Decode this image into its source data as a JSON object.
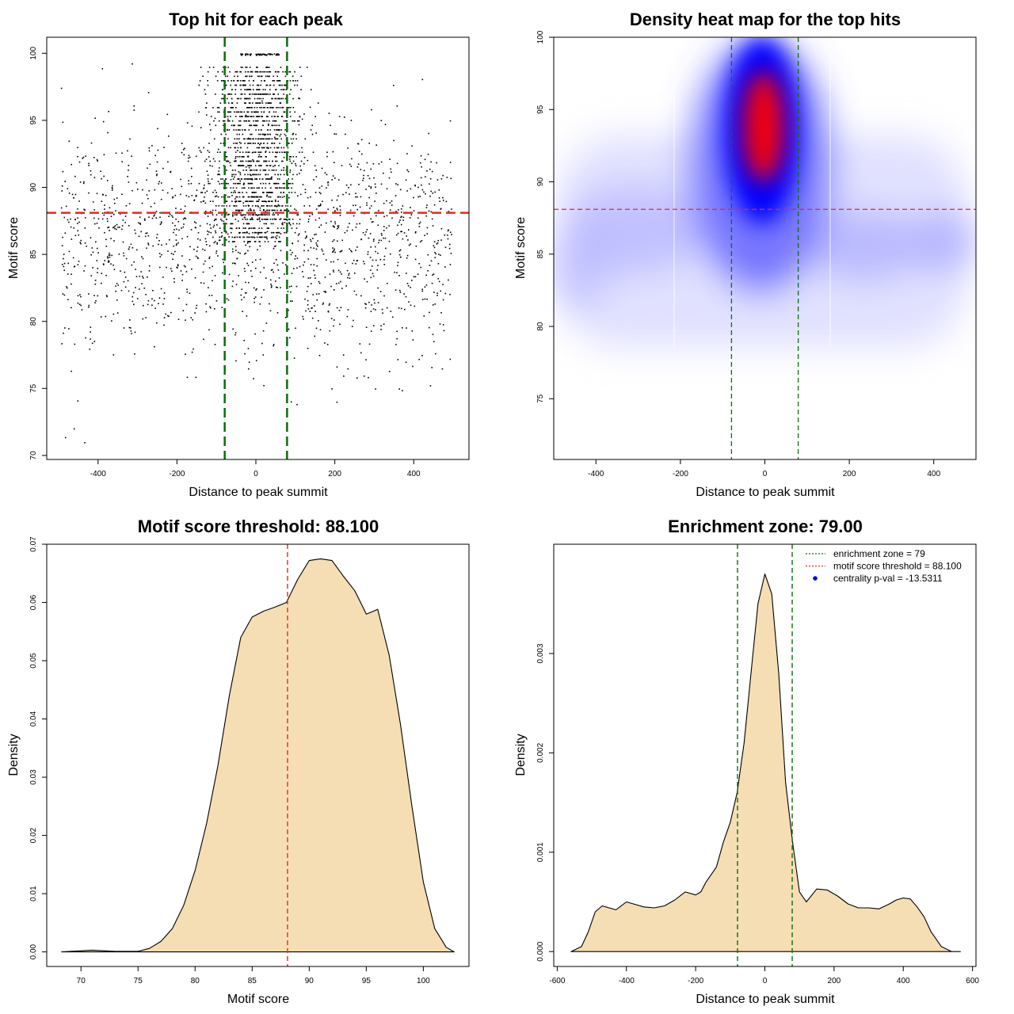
{
  "chart_data": [
    {
      "type": "scatter",
      "title": "Top hit for each peak",
      "xlabel": "Distance to peak summit",
      "ylabel": "Motif score",
      "xlim": [
        -530,
        540
      ],
      "ylim": [
        69.7,
        101.2
      ],
      "xticks": [
        -400,
        -200,
        0,
        200,
        400
      ],
      "yticks": [
        70,
        75,
        80,
        85,
        90,
        95,
        100
      ],
      "point_color": "#000000",
      "note_points": "points are dense between x in [-79, 79] and y >= 86; sampled visually",
      "hlines": [
        {
          "y": 88.1,
          "color": "#e8281e",
          "style": "dashed"
        }
      ],
      "vlines": [
        {
          "x": -79,
          "color": "#0a6e0a",
          "style": "dashed"
        },
        {
          "x": 79,
          "color": "#0a6e0a",
          "style": "dashed"
        }
      ]
    },
    {
      "type": "heatmap",
      "title": "Density heat map for the top hits",
      "xlabel": "Distance to peak summit",
      "ylabel": "Motif score",
      "xlim": [
        -500,
        500
      ],
      "ylim": [
        70.8,
        100
      ],
      "xticks": [
        -400,
        -200,
        0,
        200,
        400
      ],
      "yticks": [
        75,
        80,
        85,
        90,
        95,
        100
      ],
      "colors": [
        "#ffffff",
        "#0000ff",
        "#ff0000"
      ],
      "hlines": [
        {
          "y": 88.1,
          "color": "#e8281e",
          "style": "dashed"
        }
      ],
      "vlines": [
        {
          "x": -79,
          "color": "#0a6e0a",
          "style": "dashed"
        },
        {
          "x": 79,
          "color": "#0a6e0a",
          "style": "dashed"
        }
      ]
    },
    {
      "type": "area",
      "title": "Motif score threshold: 88.100",
      "xlabel": "Motif score",
      "ylabel": "Density",
      "xlim": [
        67,
        104
      ],
      "ylim": [
        -0.0025,
        0.07
      ],
      "xticks": [
        70,
        75,
        80,
        85,
        90,
        95,
        100
      ],
      "yticks": [
        0.0,
        0.01,
        0.02,
        0.03,
        0.04,
        0.05,
        0.06,
        0.07
      ],
      "ytick_labels": [
        "0.00",
        "0.01",
        "0.02",
        "0.03",
        "0.04",
        "0.05",
        "0.06",
        "0.07"
      ],
      "fill_color": "#f5deb3",
      "x": [
        68.3,
        70,
        71,
        72,
        73,
        75,
        76,
        77,
        78,
        79,
        80,
        81,
        82,
        83,
        84,
        85,
        86,
        87,
        88,
        89,
        90,
        91,
        92,
        93,
        94,
        95,
        96,
        97,
        98,
        99,
        100,
        101,
        102,
        102.7
      ],
      "y": [
        0.0,
        0.0002,
        0.0003,
        0.0002,
        0.0001,
        0.0001,
        0.0006,
        0.0018,
        0.004,
        0.008,
        0.014,
        0.022,
        0.032,
        0.044,
        0.054,
        0.0575,
        0.0585,
        0.0592,
        0.06,
        0.064,
        0.0672,
        0.0675,
        0.0672,
        0.0645,
        0.062,
        0.058,
        0.0588,
        0.051,
        0.039,
        0.025,
        0.012,
        0.004,
        0.0008,
        0.0
      ],
      "vlines": [
        {
          "x": 88.1,
          "color": "#e8281e",
          "style": "dashed"
        }
      ]
    },
    {
      "type": "area",
      "title": "Enrichment zone: 79.00",
      "xlabel": "Distance to peak summit",
      "ylabel": "Density",
      "xlim": [
        -610,
        610
      ],
      "ylim": [
        -0.00015,
        0.0041
      ],
      "xticks": [
        -600,
        -400,
        -200,
        0,
        200,
        400,
        600
      ],
      "yticks": [
        0.0,
        0.001,
        0.002,
        0.003
      ],
      "ytick_labels": [
        "0.000",
        "0.001",
        "0.002",
        "0.003"
      ],
      "fill_color": "#f5deb3",
      "x": [
        -560,
        -530,
        -510,
        -490,
        -470,
        -450,
        -430,
        -400,
        -380,
        -350,
        -320,
        -290,
        -260,
        -230,
        -200,
        -185,
        -170,
        -140,
        -120,
        -100,
        -80,
        -60,
        -40,
        -20,
        0,
        20,
        40,
        60,
        80,
        100,
        120,
        150,
        180,
        210,
        240,
        270,
        300,
        330,
        360,
        380,
        400,
        420,
        440,
        460,
        480,
        510,
        540,
        565
      ],
      "y": [
        0.0,
        5e-05,
        0.0002,
        0.0004,
        0.00046,
        0.00044,
        0.00042,
        0.0005,
        0.00048,
        0.00045,
        0.00044,
        0.00046,
        0.00052,
        0.0006,
        0.00057,
        0.0006,
        0.0007,
        0.00085,
        0.0011,
        0.0013,
        0.0016,
        0.0021,
        0.0028,
        0.0035,
        0.0038,
        0.0036,
        0.0028,
        0.0017,
        0.0011,
        0.0006,
        0.0005,
        0.00063,
        0.00062,
        0.00056,
        0.00048,
        0.00044,
        0.00044,
        0.00043,
        0.00048,
        0.00052,
        0.00054,
        0.00053,
        0.00045,
        0.00035,
        0.0002,
        5e-05,
        0.0,
        0.0
      ],
      "vlines": [
        {
          "x": -79,
          "color": "#0a6e0a",
          "style": "dashed"
        },
        {
          "x": 79,
          "color": "#0a6e0a",
          "style": "dashed"
        }
      ],
      "legend": {
        "position": "top-right",
        "items": [
          {
            "label": "enrichment zone = 79",
            "color": "#0a6e0a",
            "symbol": "dotted-line"
          },
          {
            "label": "motif score threshold = 88.100",
            "color": "#e8281e",
            "symbol": "dotted-line"
          },
          {
            "label": "centrality p-val = -13.5311",
            "color": "#0000ff",
            "symbol": "dot"
          }
        ]
      }
    }
  ]
}
